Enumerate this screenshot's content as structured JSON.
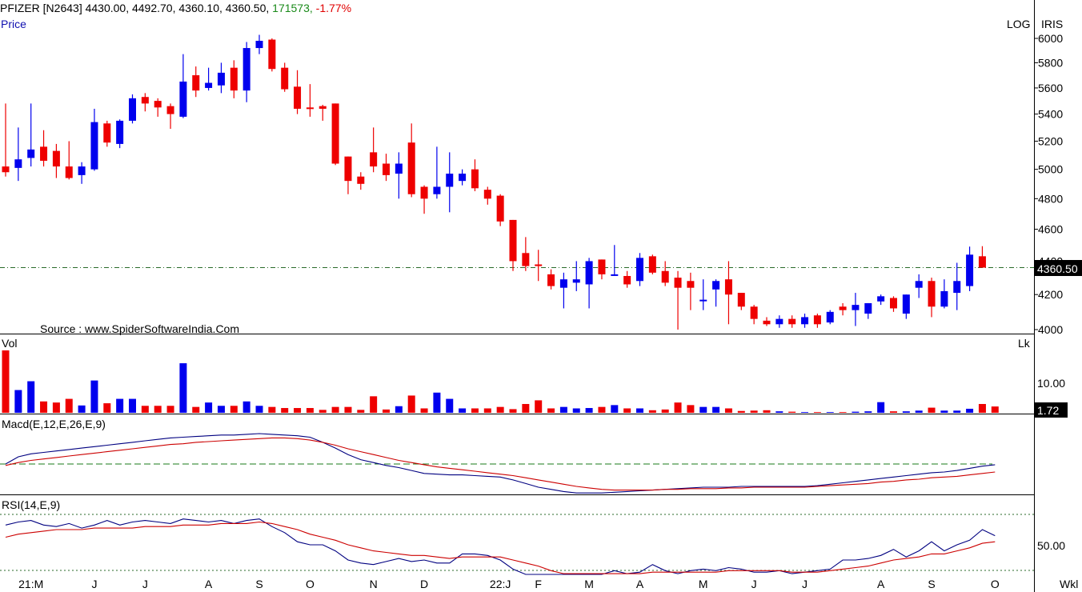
{
  "header": {
    "symbol": "PFIZER [N2643]",
    "open": "4430.00,",
    "high": "4492.70,",
    "low": "4360.10,",
    "close": "4360.50,",
    "volume": "171573,",
    "change": "-1.77%"
  },
  "panels": {
    "price_label": "Price",
    "price_scale_label": "LOG",
    "brand": "IRIS",
    "last_price_tag": "4360.50",
    "source": "Source : www.SpiderSoftwareIndia.Com",
    "vol_label": "Vol",
    "vol_unit": "Lk",
    "vol_tick": "10.00",
    "vol_last_tag": "1.72",
    "macd_label": "Macd(E,12,E,26,E,9)",
    "rsi_label": "RSI(14,E,9)",
    "rsi_tick": "50.00",
    "timeframe": "Wkl"
  },
  "colors": {
    "up": "#0000ee",
    "down": "#ee0000",
    "macd": "#000080",
    "signal": "#cc0000"
  },
  "chart_data": [
    {
      "type": "candlestick",
      "panel": "price",
      "yscale": "log",
      "ylim": [
        3950,
        6100
      ],
      "yticks": [
        4000,
        4200,
        4400,
        4600,
        4800,
        5000,
        5200,
        5400,
        5600,
        5800,
        6000
      ],
      "last_price_line": 4360.5,
      "x_tick_labels": [
        "21:M",
        "J",
        "J",
        "A",
        "S",
        "O",
        "N",
        "D",
        "22:J",
        "F",
        "M",
        "A",
        "M",
        "J",
        "J",
        "A",
        "S",
        "O"
      ],
      "x_tick_index": [
        2,
        7,
        11,
        16,
        20,
        24,
        29,
        33,
        39,
        42,
        46,
        50,
        55,
        59,
        63,
        69,
        73,
        78
      ],
      "candles": [
        [
          5020,
          4980,
          5480,
          4950
        ],
        [
          5010,
          5070,
          5300,
          4920
        ],
        [
          5080,
          5140,
          5480,
          5020
        ],
        [
          5160,
          5060,
          5280,
          5020
        ],
        [
          5130,
          5020,
          5180,
          4940
        ],
        [
          5020,
          4940,
          5200,
          4930
        ],
        [
          4960,
          5020,
          5050,
          4900
        ],
        [
          5000,
          5340,
          5440,
          4990
        ],
        [
          5330,
          5190,
          5350,
          5160
        ],
        [
          5180,
          5350,
          5360,
          5150
        ],
        [
          5350,
          5520,
          5550,
          5330
        ],
        [
          5530,
          5480,
          5560,
          5420
        ],
        [
          5500,
          5450,
          5520,
          5380
        ],
        [
          5460,
          5400,
          5480,
          5290
        ],
        [
          5380,
          5650,
          5870,
          5370
        ],
        [
          5700,
          5580,
          5770,
          5530
        ],
        [
          5600,
          5640,
          5760,
          5580
        ],
        [
          5620,
          5720,
          5800,
          5560
        ],
        [
          5760,
          5580,
          5820,
          5520
        ],
        [
          5580,
          5920,
          5970,
          5490
        ],
        [
          5920,
          5980,
          6030,
          5870
        ],
        [
          5990,
          5750,
          6000,
          5730
        ],
        [
          5760,
          5590,
          5800,
          5570
        ],
        [
          5610,
          5440,
          5740,
          5400
        ],
        [
          5450,
          5440,
          5630,
          5380
        ],
        [
          5460,
          5440,
          5470,
          5350
        ],
        [
          5480,
          5040,
          5480,
          5030
        ],
        [
          5090,
          4920,
          5090,
          4830
        ],
        [
          4950,
          4900,
          4980,
          4860
        ],
        [
          5120,
          5020,
          5300,
          4980
        ],
        [
          5040,
          4960,
          5110,
          4920
        ],
        [
          4970,
          5040,
          5120,
          4800
        ],
        [
          5190,
          4830,
          5330,
          4810
        ],
        [
          4880,
          4800,
          4890,
          4700
        ],
        [
          4830,
          4880,
          5160,
          4800
        ],
        [
          4880,
          4970,
          5120,
          4710
        ],
        [
          4920,
          4970,
          5000,
          4890
        ],
        [
          5000,
          4870,
          5070,
          4850
        ],
        [
          4860,
          4800,
          4880,
          4760
        ],
        [
          4820,
          4650,
          4830,
          4620
        ],
        [
          4660,
          4400,
          4660,
          4340
        ],
        [
          4450,
          4370,
          4550,
          4340
        ],
        [
          4380,
          4370,
          4470,
          4280
        ],
        [
          4320,
          4250,
          4350,
          4230
        ],
        [
          4240,
          4290,
          4330,
          4120
        ],
        [
          4270,
          4290,
          4400,
          4220
        ],
        [
          4260,
          4400,
          4420,
          4120
        ],
        [
          4410,
          4320,
          4410,
          4290
        ],
        [
          4320,
          4320,
          4500,
          4310
        ],
        [
          4310,
          4260,
          4340,
          4240
        ],
        [
          4280,
          4420,
          4450,
          4250
        ],
        [
          4430,
          4330,
          4440,
          4320
        ],
        [
          4340,
          4270,
          4400,
          4250
        ],
        [
          4300,
          4240,
          4340,
          4000
        ],
        [
          4280,
          4240,
          4330,
          4110
        ],
        [
          4170,
          4170,
          4290,
          4110
        ],
        [
          4230,
          4280,
          4290,
          4130
        ],
        [
          4290,
          4200,
          4400,
          4030
        ],
        [
          4210,
          4130,
          4210,
          4110
        ],
        [
          4130,
          4060,
          4140,
          4030
        ],
        [
          4050,
          4030,
          4070,
          4020
        ],
        [
          4030,
          4060,
          4080,
          4010
        ],
        [
          4060,
          4030,
          4080,
          4010
        ],
        [
          4030,
          4070,
          4090,
          4010
        ],
        [
          4080,
          4030,
          4090,
          4010
        ],
        [
          4040,
          4100,
          4110,
          4030
        ],
        [
          4130,
          4110,
          4150,
          4080
        ],
        [
          4110,
          4140,
          4210,
          4020
        ],
        [
          4090,
          4150,
          4150,
          4060
        ],
        [
          4160,
          4190,
          4200,
          4140
        ],
        [
          4180,
          4120,
          4190,
          4100
        ],
        [
          4090,
          4200,
          4200,
          4060
        ],
        [
          4240,
          4280,
          4320,
          4180
        ],
        [
          4280,
          4130,
          4300,
          4070
        ],
        [
          4130,
          4220,
          4290,
          4120
        ],
        [
          4210,
          4280,
          4390,
          4110
        ],
        [
          4250,
          4440,
          4490,
          4220
        ],
        [
          4430,
          4360.5,
          4492.7,
          4360.1
        ]
      ]
    },
    {
      "type": "bar",
      "panel": "volume",
      "unit": "Lk",
      "ylim": [
        0,
        18
      ],
      "values": [
        17,
        6.2,
        8.6,
        3.1,
        2.8,
        3.8,
        2.0,
        8.8,
        2.6,
        3.8,
        3.8,
        1.9,
        1.9,
        1.9,
        13.5,
        1.6,
        2.8,
        1.9,
        1.9,
        3.1,
        1.9,
        1.6,
        1.3,
        1.3,
        1.3,
        0.8,
        1.6,
        1.6,
        0.8,
        4.5,
        0.9,
        1.8,
        4.7,
        1.2,
        5.5,
        3.8,
        1.2,
        1.2,
        1.2,
        1.6,
        1.0,
        2.4,
        3.4,
        1.2,
        1.6,
        1.2,
        1.3,
        1.6,
        2.1,
        1.2,
        1.2,
        0.7,
        0.9,
        2.8,
        2.1,
        1.6,
        1.6,
        1.2,
        0.5,
        0.6,
        0.7,
        0.4,
        0.3,
        0.2,
        0.2,
        0.2,
        0.2,
        0.3,
        0.4,
        2.9,
        0.4,
        0.4,
        0.6,
        1.4,
        0.6,
        0.6,
        1.1,
        2.4,
        1.72
      ]
    },
    {
      "type": "line",
      "panel": "macd",
      "ylim": [
        -60,
        60
      ],
      "zero_line": 0,
      "series": [
        {
          "values": [
            0,
            10,
            14,
            16,
            18,
            20,
            22,
            24,
            26,
            28,
            30,
            32,
            34,
            36,
            37,
            38,
            39,
            40,
            40,
            41,
            42,
            41,
            40,
            39,
            37,
            30,
            22,
            13,
            6,
            2,
            -2,
            -5,
            -9,
            -13,
            -14,
            -15,
            -15,
            -16,
            -17,
            -18,
            -22,
            -27,
            -32,
            -35,
            -38,
            -40,
            -40,
            -40,
            -39,
            -38,
            -37,
            -36,
            -35,
            -34,
            -33,
            -32,
            -32,
            -32,
            -31,
            -31,
            -31,
            -31,
            -31,
            -31,
            -30,
            -28,
            -26,
            -24,
            -22,
            -20,
            -18,
            -16,
            -14,
            -12,
            -11,
            -9,
            -6,
            -3,
            -1
          ]
        },
        {
          "values": [
            -2,
            2,
            5,
            7,
            9,
            11,
            13,
            15,
            17,
            19,
            21,
            23,
            25,
            27,
            28,
            30,
            31,
            32,
            33,
            34,
            35,
            36,
            36,
            35,
            33,
            30,
            26,
            21,
            17,
            13,
            9,
            5,
            2,
            -1,
            -4,
            -6,
            -8,
            -10,
            -12,
            -14,
            -16,
            -19,
            -22,
            -25,
            -28,
            -31,
            -33,
            -35,
            -36,
            -36,
            -36,
            -36,
            -35,
            -35,
            -34,
            -34,
            -34,
            -33,
            -33,
            -32,
            -32,
            -32,
            -32,
            -32,
            -31,
            -30,
            -29,
            -28,
            -27,
            -25,
            -24,
            -22,
            -21,
            -19,
            -18,
            -17,
            -15,
            -13,
            -11
          ]
        }
      ]
    },
    {
      "type": "line",
      "panel": "rsi",
      "ytick": 50,
      "series": [
        {
          "values": [
            63,
            65,
            66,
            63,
            62,
            64,
            61,
            63,
            66,
            63,
            65,
            66,
            65,
            64,
            67,
            66,
            65,
            66,
            64,
            66,
            67,
            62,
            58,
            52,
            50,
            50,
            46,
            40,
            38,
            37,
            39,
            41,
            39,
            40,
            38,
            38,
            44,
            44,
            43,
            40,
            34,
            29,
            28,
            25,
            25,
            28,
            30,
            30,
            33,
            31,
            32,
            37,
            33,
            31,
            33,
            34,
            33,
            35,
            34,
            32,
            32,
            33,
            31,
            32,
            33,
            34,
            40,
            40,
            41,
            43,
            47,
            42,
            46,
            52,
            46,
            50,
            53,
            60,
            56
          ]
        },
        {
          "values": [
            55,
            57,
            58,
            59,
            60,
            60,
            60,
            61,
            61,
            61,
            61,
            62,
            62,
            62,
            63,
            63,
            63,
            64,
            64,
            64,
            65,
            64,
            62,
            60,
            57,
            55,
            53,
            50,
            48,
            46,
            45,
            44,
            43,
            43,
            42,
            41,
            42,
            42,
            42,
            42,
            40,
            38,
            36,
            33,
            31,
            31,
            31,
            31,
            31,
            31,
            31,
            32,
            32,
            32,
            32,
            32,
            32,
            33,
            33,
            33,
            33,
            33,
            32,
            32,
            32,
            33,
            34,
            35,
            36,
            38,
            40,
            41,
            42,
            44,
            44,
            46,
            48,
            51,
            52
          ]
        }
      ]
    }
  ]
}
